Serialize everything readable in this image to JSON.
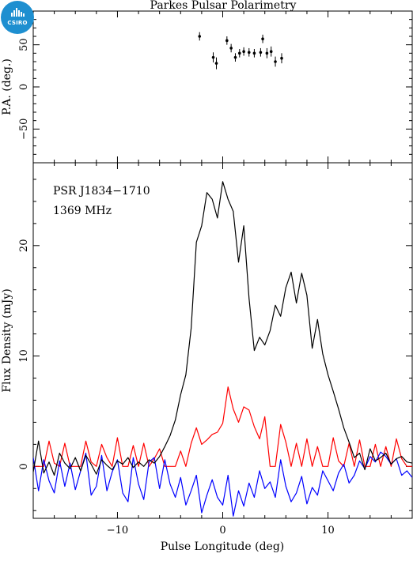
{
  "title": "Parkes Pulsar Polarimetry",
  "logo_text": "CSIRO",
  "colors": {
    "total_intensity": "#000000",
    "linear_polarization": "#ff0000",
    "circular_polarization": "#0000ff",
    "logo": "#1e8fd0"
  },
  "chart_data": [
    {
      "type": "scatter",
      "panel": "position-angle",
      "ylabel": "P.A. (deg.)",
      "xlim": [
        -18,
        18
      ],
      "ylim": [
        -90,
        90
      ],
      "yticks": [
        -50,
        0,
        50
      ],
      "grid": false,
      "x": [
        -2.2,
        -0.9,
        -0.6,
        0.4,
        0.8,
        1.2,
        1.6,
        2.0,
        2.5,
        3.0,
        3.6,
        3.8,
        4.2,
        4.6,
        5.0,
        5.6
      ],
      "y": [
        60,
        35,
        28,
        55,
        46,
        35,
        40,
        42,
        41,
        40,
        41,
        57,
        40,
        42,
        30,
        34
      ],
      "yerr": [
        5,
        6,
        7,
        5,
        5,
        5,
        5,
        5,
        5,
        5,
        5,
        5,
        6,
        6,
        6,
        6
      ]
    },
    {
      "type": "line",
      "panel": "flux-profile",
      "annotation": [
        "PSR J1834−1710",
        "1369 MHz"
      ],
      "xlabel": "Pulse Longitude (deg)",
      "ylabel": "Flux Density (mJy)",
      "xlim": [
        -18,
        18
      ],
      "ylim": [
        -4.7,
        27.5
      ],
      "xticks": [
        -10,
        0,
        10
      ],
      "yticks": [
        0,
        10,
        20
      ],
      "grid": false,
      "x": [
        -18,
        -17.5,
        -17,
        -16.5,
        -16,
        -15.5,
        -15,
        -14.5,
        -14,
        -13.5,
        -13,
        -12.5,
        -12,
        -11.5,
        -11,
        -10.5,
        -10,
        -9.5,
        -9,
        -8.5,
        -8,
        -7.5,
        -7,
        -6.5,
        -6,
        -5.5,
        -5,
        -4.5,
        -4,
        -3.5,
        -3,
        -2.5,
        -2,
        -1.5,
        -1,
        -0.5,
        0,
        0.5,
        1,
        1.5,
        2,
        2.5,
        3,
        3.5,
        4,
        4.5,
        5,
        5.5,
        6,
        6.5,
        7,
        7.5,
        8,
        8.5,
        9,
        9.5,
        10,
        10.5,
        11,
        11.5,
        12,
        12.5,
        13,
        13.5,
        14,
        14.5,
        15,
        15.5,
        16,
        16.5,
        17,
        17.5,
        18
      ],
      "series": [
        {
          "key": "total_intensity",
          "values": [
            -0.5,
            2.3,
            -0.6,
            0.4,
            -0.8,
            1.2,
            0.3,
            -0.2,
            0.8,
            -0.4,
            1.0,
            0.2,
            -0.7,
            0.6,
            0.1,
            -0.3,
            0.5,
            0.2,
            0.8,
            -0.1,
            0.4,
            0.0,
            0.6,
            0.3,
            0.9,
            1.8,
            2.8,
            4.2,
            6.5,
            8.3,
            12.5,
            20.3,
            21.8,
            24.8,
            24.2,
            22.5,
            25.8,
            24.2,
            23.1,
            18.5,
            21.8,
            15.2,
            10.5,
            11.7,
            11.0,
            12.3,
            14.6,
            13.6,
            16.2,
            17.6,
            14.8,
            17.5,
            15.5,
            10.7,
            13.3,
            10.2,
            8.3,
            6.8,
            5.2,
            3.5,
            2.2,
            0.8,
            1.2,
            -0.3,
            1.6,
            0.5,
            0.8,
            1.2,
            0.2,
            0.7,
            0.9,
            0.4,
            0.3
          ]
        },
        {
          "key": "linear_polarization",
          "values": [
            0,
            0,
            0,
            2.3,
            0.3,
            0,
            2.1,
            0,
            0,
            0,
            2.3,
            0.4,
            0,
            2.0,
            0.8,
            0,
            2.6,
            0,
            0,
            1.9,
            0,
            2.1,
            0,
            0.7,
            1.6,
            0,
            0,
            0,
            1.4,
            0,
            2.1,
            3.5,
            2.0,
            2.4,
            2.9,
            3.1,
            3.9,
            7.2,
            5.2,
            4.0,
            5.4,
            5.1,
            3.6,
            2.5,
            4.5,
            0,
            0,
            3.8,
            2.2,
            0,
            2.1,
            0,
            2.5,
            0,
            1.8,
            0,
            0,
            2.6,
            0.5,
            0,
            2.1,
            0,
            2.4,
            0,
            0,
            2.0,
            0,
            1.8,
            0,
            2.5,
            0.7,
            0,
            0
          ]
        },
        {
          "key": "circular_polarization",
          "values": [
            0.8,
            -2.2,
            0.6,
            -1.3,
            -2.4,
            0.5,
            -1.8,
            0.3,
            -2.1,
            -0.4,
            1.2,
            -2.6,
            -1.8,
            1.0,
            -2.2,
            -0.5,
            0.6,
            -2.4,
            -3.2,
            0.8,
            -1.6,
            -3.0,
            0.4,
            0.8,
            -2.0,
            0.6,
            -1.6,
            -2.8,
            -1.0,
            -3.5,
            -2.2,
            -0.8,
            -4.2,
            -2.6,
            -1.2,
            -2.8,
            -3.5,
            -0.8,
            -4.5,
            -2.2,
            -3.6,
            -1.5,
            -2.8,
            -0.4,
            -2.0,
            -1.4,
            -2.8,
            0.6,
            -1.8,
            -3.2,
            -2.4,
            -0.9,
            -3.4,
            -1.9,
            -2.6,
            -0.4,
            -1.3,
            -2.2,
            -0.6,
            0.2,
            -1.5,
            -0.8,
            0.5,
            -0.2,
            0.9,
            0.4,
            1.3,
            0.9,
            0.2,
            0.7,
            -0.8,
            -0.4,
            -1.0
          ]
        }
      ]
    }
  ]
}
